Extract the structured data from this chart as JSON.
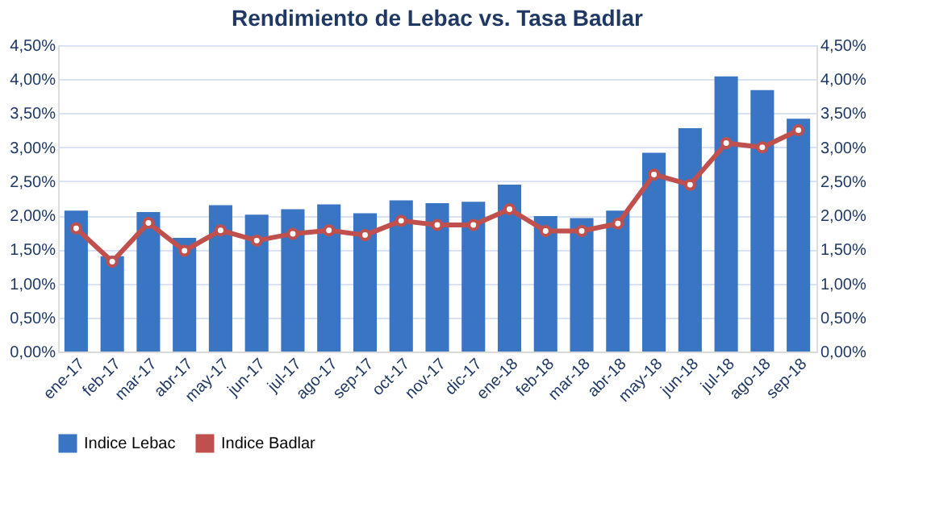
{
  "chart_data": {
    "type": "bar",
    "title": "Rendimiento de Lebac vs. Tasa Badlar",
    "categories": [
      "ene-17",
      "feb-17",
      "mar-17",
      "abr-17",
      "may-17",
      "jun-17",
      "jul-17",
      "ago-17",
      "sep-17",
      "oct-17",
      "nov-17",
      "dic-17",
      "ene-18",
      "feb-18",
      "mar-18",
      "abr-18",
      "may-18",
      "jun-18",
      "jul-18",
      "ago-18",
      "sep-18"
    ],
    "series": [
      {
        "name": "Indice Lebac",
        "color": "#3a75c4",
        "values": [
          2.07,
          1.4,
          2.05,
          1.67,
          2.15,
          2.01,
          2.09,
          2.16,
          2.03,
          2.22,
          2.18,
          2.2,
          2.45,
          1.99,
          1.96,
          2.07,
          2.92,
          3.28,
          4.04,
          3.84,
          3.42
        ]
      },
      {
        "name": "Indice Badlar",
        "type": "line",
        "axis": "y2",
        "color": "#c0504d",
        "marker": "circle",
        "values": [
          1.81,
          1.32,
          1.89,
          1.48,
          1.78,
          1.63,
          1.73,
          1.78,
          1.71,
          1.92,
          1.86,
          1.86,
          2.09,
          1.77,
          1.77,
          1.88,
          2.6,
          2.45,
          3.06,
          3.0,
          3.25
        ]
      }
    ],
    "ylim": [
      0,
      4.5
    ],
    "yticks": [
      {
        "value": 0,
        "label": "0,00%"
      },
      {
        "value": 0.5,
        "label": "0,50%"
      },
      {
        "value": 1,
        "label": "1,00%"
      },
      {
        "value": 1.5,
        "label": "1,50%"
      },
      {
        "value": 2,
        "label": "2,00%"
      },
      {
        "value": 2.5,
        "label": "2,50%"
      },
      {
        "value": 3,
        "label": "3,00%"
      },
      {
        "value": 3.5,
        "label": "3,50%"
      },
      {
        "value": 4,
        "label": "4,00%"
      },
      {
        "value": 4.5,
        "label": "4,50%"
      }
    ],
    "y2lim": [
      0,
      4.5
    ],
    "y2ticks": [
      {
        "value": 0,
        "label": "0,00%"
      },
      {
        "value": 0.5,
        "label": "0,50%"
      },
      {
        "value": 1,
        "label": "1,00%"
      },
      {
        "value": 1.5,
        "label": "1,50%"
      },
      {
        "value": 2,
        "label": "2,00%"
      },
      {
        "value": 2.5,
        "label": "2,50%"
      },
      {
        "value": 3,
        "label": "3,00%"
      },
      {
        "value": 3.5,
        "label": "3,50%"
      },
      {
        "value": 4,
        "label": "4,00%"
      },
      {
        "value": 4.5,
        "label": "4,50%"
      }
    ],
    "grid": "y",
    "legend": "bottom"
  }
}
